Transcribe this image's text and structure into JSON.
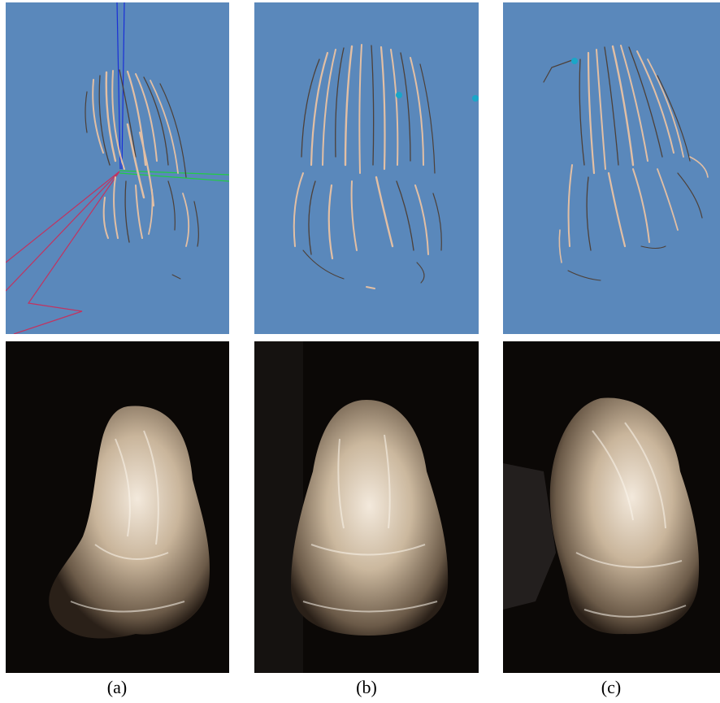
{
  "figure": {
    "columns": [
      {
        "caption": "(a)",
        "top_view": "strand-reconstruction-side-view",
        "bottom_view": "photo-hair-side-view"
      },
      {
        "caption": "(b)",
        "top_view": "strand-reconstruction-back-view",
        "bottom_view": "photo-hair-back-view"
      },
      {
        "caption": "(c)",
        "top_view": "strand-reconstruction-oblique-view",
        "bottom_view": "photo-hair-oblique-view"
      }
    ],
    "colors": {
      "render_background": "#5a88bb",
      "photo_background": "#0b0806",
      "hair_strand_light": "#e2bfa4",
      "hair_strand_dark": "#4d4038",
      "axis_x": "#22cc44",
      "axis_y": "#1a2fd6",
      "axis_z": "#c23360",
      "marker": "#1aa6c8",
      "photo_hair": "#d8c8b0"
    }
  }
}
